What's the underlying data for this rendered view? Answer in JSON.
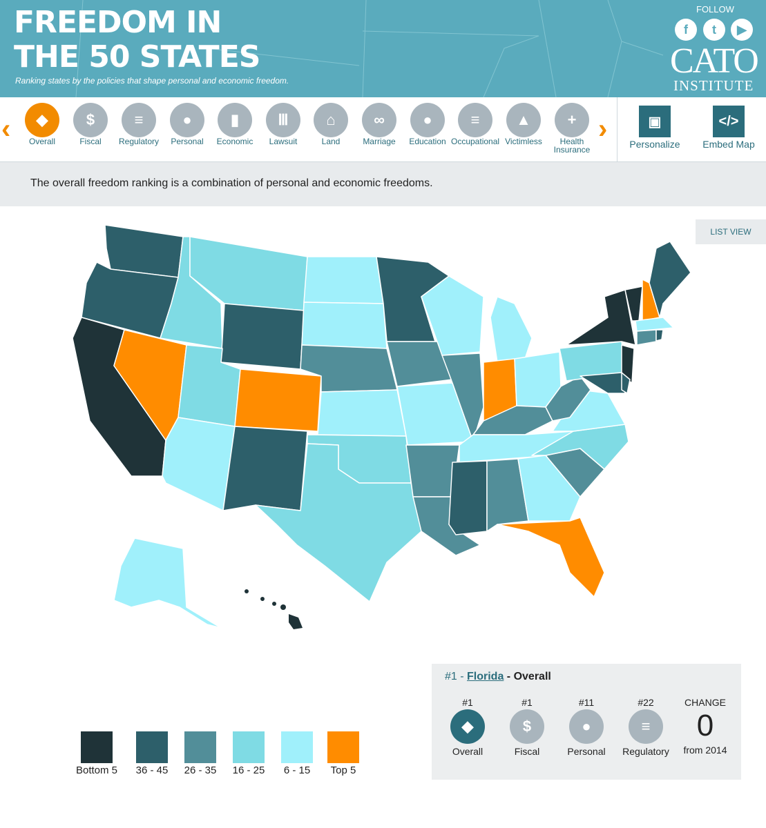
{
  "header": {
    "title_line1": "FREEDOM IN",
    "title_line2": "THE 50 STATES",
    "subtitle": "Ranking states by the policies that shape personal and economic freedom.",
    "follow": "FOLLOW",
    "social": [
      {
        "name": "facebook-icon",
        "glyph": "f"
      },
      {
        "name": "twitter-icon",
        "glyph": "t"
      },
      {
        "name": "youtube-icon",
        "glyph": "▶"
      }
    ],
    "logo_main": "CATO",
    "logo_sub": "INSTITUTE"
  },
  "nav": {
    "categories": [
      {
        "label": "Overall",
        "icon": "usa-map-icon",
        "glyph": "◆"
      },
      {
        "label": "Fiscal",
        "icon": "dollar-icon",
        "glyph": "$"
      },
      {
        "label": "Regulatory",
        "icon": "document-icon",
        "glyph": "≡"
      },
      {
        "label": "Personal",
        "icon": "person-icon",
        "glyph": "●"
      },
      {
        "label": "Economic",
        "icon": "bar-chart-icon",
        "glyph": "▮"
      },
      {
        "label": "Lawsuit",
        "icon": "courthouse-icon",
        "glyph": "Ⅲ"
      },
      {
        "label": "Land",
        "icon": "house-icon",
        "glyph": "⌂"
      },
      {
        "label": "Marriage",
        "icon": "rings-icon",
        "glyph": "∞"
      },
      {
        "label": "Education",
        "icon": "apple-icon",
        "glyph": "●"
      },
      {
        "label": "Occupational",
        "icon": "certificate-icon",
        "glyph": "≡"
      },
      {
        "label": "Victimless",
        "icon": "torch-icon",
        "glyph": "▲"
      },
      {
        "label": "Health\nInsurance",
        "icon": "medical-kit-icon",
        "glyph": "+"
      }
    ],
    "active": "Overall",
    "personalize_label": "Personalize",
    "embed_label": "Embed Map"
  },
  "description": "The overall freedom ranking is a combination of personal and economic freedoms.",
  "list_view_label": "LIST VIEW",
  "colors": {
    "bottom5": "#1f3338",
    "r36_45": "#2d5f6a",
    "r26_35": "#528e99",
    "r16_25": "#7fdbe4",
    "r6_15": "#a0f0fb",
    "top5": "#ff8c00"
  },
  "legend": [
    {
      "label": "Bottom 5",
      "color": "#1f3338"
    },
    {
      "label": "36 - 45",
      "color": "#2d5f6a"
    },
    {
      "label": "26 - 35",
      "color": "#528e99"
    },
    {
      "label": "16 - 25",
      "color": "#7fdbe4"
    },
    {
      "label": "6 - 15",
      "color": "#a0f0fb"
    },
    {
      "label": "Top 5",
      "color": "#ff8c00"
    }
  ],
  "detail": {
    "rank_prefix": "#1 - ",
    "state": "Florida",
    "suffix": " - Overall",
    "stats": [
      {
        "rank": "#1",
        "label": "Overall"
      },
      {
        "rank": "#1",
        "label": "Fiscal"
      },
      {
        "rank": "#11",
        "label": "Personal"
      },
      {
        "rank": "#22",
        "label": "Regulatory"
      }
    ],
    "change_label": "CHANGE",
    "change_value": "0",
    "change_sub": "from 2014"
  }
}
